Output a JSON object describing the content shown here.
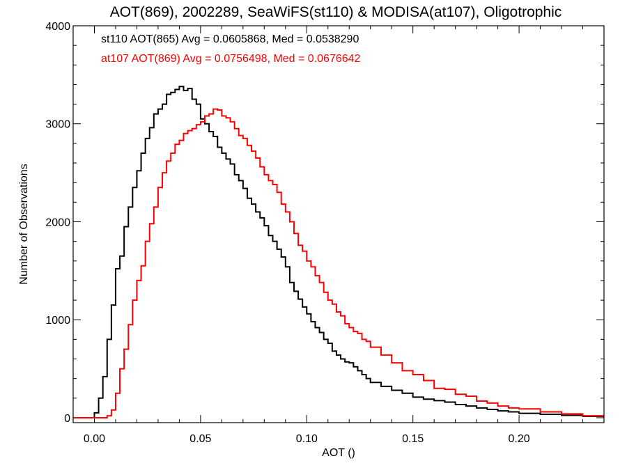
{
  "chart_data": {
    "type": "line",
    "title": "AOT(869), 2002289, SeaWiFS(st110) & MODISA(at107), Oligotrophic",
    "xlabel": "AOT ()",
    "ylabel": "Number of Observations",
    "xlim": [
      -0.01,
      0.24
    ],
    "ylim": [
      -50,
      4000
    ],
    "xticks": [
      0.0,
      0.05,
      0.1,
      0.15,
      0.2
    ],
    "xtick_labels": [
      "0.00",
      "0.05",
      "0.10",
      "0.15",
      "0.20"
    ],
    "yticks": [
      0,
      1000,
      2000,
      3000,
      4000
    ],
    "ytick_labels": [
      "0",
      "1000",
      "2000",
      "3000",
      "4000"
    ],
    "grid": false,
    "legend_placement": "top-left",
    "annotations": [
      {
        "text": "st110 AOT(865) Avg = 0.0605868, Med = 0.0538290",
        "color": "#000000"
      },
      {
        "text": "at107 AOT(869) Avg = 0.0756498, Med = 0.0676642",
        "color": "#ff0000"
      }
    ],
    "series": [
      {
        "color": "#000000",
        "x": [
          -0.01,
          -0.005,
          0.0,
          0.002,
          0.004,
          0.006,
          0.008,
          0.01,
          0.012,
          0.014,
          0.016,
          0.018,
          0.02,
          0.022,
          0.024,
          0.026,
          0.028,
          0.03,
          0.032,
          0.034,
          0.036,
          0.038,
          0.04,
          0.042,
          0.044,
          0.046,
          0.048,
          0.05,
          0.052,
          0.054,
          0.056,
          0.058,
          0.06,
          0.062,
          0.064,
          0.066,
          0.068,
          0.07,
          0.072,
          0.074,
          0.076,
          0.078,
          0.08,
          0.082,
          0.084,
          0.086,
          0.088,
          0.09,
          0.092,
          0.094,
          0.096,
          0.098,
          0.1,
          0.102,
          0.104,
          0.106,
          0.108,
          0.11,
          0.112,
          0.114,
          0.116,
          0.118,
          0.12,
          0.122,
          0.124,
          0.126,
          0.128,
          0.13,
          0.135,
          0.14,
          0.145,
          0.15,
          0.155,
          0.16,
          0.165,
          0.17,
          0.175,
          0.18,
          0.185,
          0.19,
          0.195,
          0.2,
          0.21,
          0.22,
          0.23,
          0.24
        ],
        "y": [
          0,
          0,
          50,
          200,
          420,
          800,
          1150,
          1520,
          1650,
          1950,
          2150,
          2350,
          2520,
          2700,
          2850,
          2960,
          3100,
          3150,
          3200,
          3300,
          3320,
          3350,
          3380,
          3340,
          3360,
          3250,
          3200,
          3050,
          3000,
          2920,
          2870,
          2760,
          2700,
          2640,
          2590,
          2480,
          2420,
          2340,
          2240,
          2180,
          2100,
          2040,
          1960,
          1860,
          1800,
          1720,
          1640,
          1540,
          1380,
          1290,
          1210,
          1130,
          1060,
          980,
          920,
          870,
          800,
          760,
          680,
          640,
          600,
          570,
          560,
          520,
          480,
          440,
          400,
          360,
          320,
          280,
          250,
          210,
          190,
          175,
          160,
          135,
          120,
          100,
          85,
          70,
          60,
          45,
          35,
          25,
          15,
          5
        ]
      },
      {
        "color": "#ff0000",
        "x": [
          -0.01,
          0.0,
          0.004,
          0.006,
          0.008,
          0.01,
          0.012,
          0.014,
          0.016,
          0.018,
          0.02,
          0.022,
          0.024,
          0.026,
          0.028,
          0.03,
          0.032,
          0.034,
          0.036,
          0.038,
          0.04,
          0.042,
          0.044,
          0.046,
          0.048,
          0.05,
          0.052,
          0.054,
          0.056,
          0.058,
          0.06,
          0.062,
          0.064,
          0.066,
          0.068,
          0.07,
          0.072,
          0.074,
          0.076,
          0.078,
          0.08,
          0.082,
          0.084,
          0.086,
          0.088,
          0.09,
          0.092,
          0.094,
          0.096,
          0.098,
          0.1,
          0.102,
          0.104,
          0.106,
          0.108,
          0.11,
          0.112,
          0.114,
          0.116,
          0.118,
          0.12,
          0.122,
          0.124,
          0.126,
          0.128,
          0.13,
          0.135,
          0.14,
          0.145,
          0.15,
          0.155,
          0.16,
          0.165,
          0.17,
          0.175,
          0.18,
          0.185,
          0.19,
          0.195,
          0.2,
          0.21,
          0.22,
          0.23,
          0.24
        ],
        "y": [
          0,
          0,
          0,
          20,
          80,
          250,
          500,
          700,
          950,
          1200,
          1400,
          1550,
          1800,
          1980,
          2150,
          2350,
          2500,
          2620,
          2700,
          2790,
          2830,
          2900,
          2930,
          2950,
          2990,
          3020,
          3080,
          3100,
          3150,
          3140,
          3080,
          3060,
          3020,
          2950,
          2880,
          2850,
          2780,
          2720,
          2650,
          2560,
          2480,
          2420,
          2380,
          2300,
          2180,
          2100,
          2000,
          1880,
          1760,
          1700,
          1600,
          1540,
          1450,
          1380,
          1280,
          1200,
          1160,
          1080,
          1040,
          960,
          920,
          880,
          860,
          800,
          780,
          720,
          640,
          560,
          480,
          440,
          380,
          300,
          290,
          240,
          220,
          170,
          150,
          120,
          100,
          90,
          60,
          40,
          20,
          10
        ]
      }
    ]
  }
}
